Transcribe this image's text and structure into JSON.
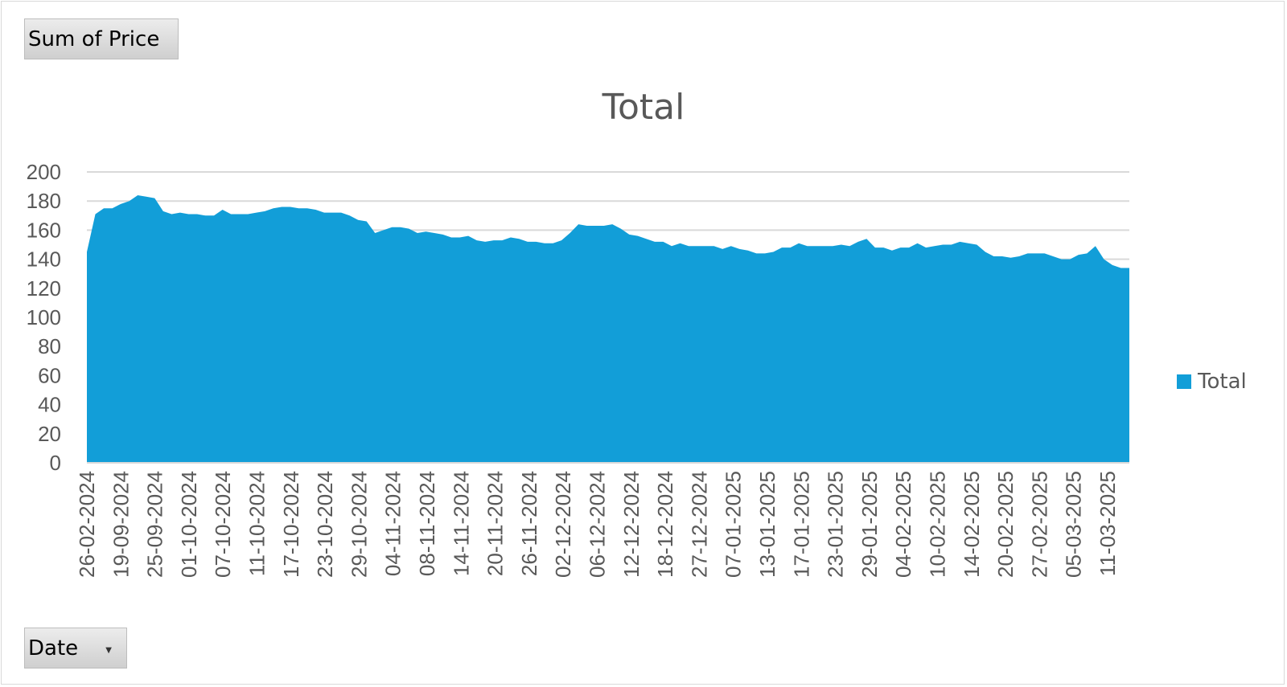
{
  "pivot": {
    "value_field": "Sum of Price",
    "axis_field": "Date",
    "legend_label": "Total"
  },
  "colors": {
    "area": "#129ed8",
    "grid": "#d9d9d9",
    "text": "#595959"
  },
  "icons": {
    "dropdown": "chevron-down-icon"
  },
  "chart_data": {
    "type": "area",
    "title": "Total",
    "xlabel": "",
    "ylabel": "",
    "ylim": [
      0,
      200
    ],
    "yticks": [
      0,
      20,
      40,
      60,
      80,
      100,
      120,
      140,
      160,
      180,
      200
    ],
    "grid": true,
    "legend_position": "right",
    "x_tick_labels": [
      "26-02-2024",
      "19-09-2024",
      "25-09-2024",
      "01-10-2024",
      "07-10-2024",
      "11-10-2024",
      "17-10-2024",
      "23-10-2024",
      "29-10-2024",
      "04-11-2024",
      "08-11-2024",
      "14-11-2024",
      "20-11-2024",
      "26-11-2024",
      "02-12-2024",
      "06-12-2024",
      "12-12-2024",
      "18-12-2024",
      "27-12-2024",
      "07-01-2025",
      "13-01-2025",
      "17-01-2025",
      "23-01-2025",
      "29-01-2025",
      "04-02-2025",
      "10-02-2025",
      "14-02-2025",
      "20-02-2025",
      "27-02-2025",
      "05-03-2025",
      "11-03-2025"
    ],
    "series": [
      {
        "name": "Total",
        "values": [
          145,
          171,
          175,
          175,
          178,
          180,
          184,
          183,
          182,
          173,
          171,
          172,
          171,
          171,
          170,
          170,
          174,
          171,
          171,
          171,
          172,
          173,
          175,
          176,
          176,
          175,
          175,
          174,
          172,
          172,
          172,
          170,
          167,
          166,
          158,
          160,
          162,
          162,
          161,
          158,
          159,
          158,
          157,
          155,
          155,
          156,
          153,
          152,
          153,
          153,
          155,
          154,
          152,
          152,
          151,
          151,
          153,
          158,
          164,
          163,
          163,
          163,
          164,
          161,
          157,
          156,
          154,
          152,
          152,
          149,
          151,
          149,
          149,
          149,
          149,
          147,
          149,
          147,
          146,
          144,
          144,
          145,
          148,
          148,
          151,
          149,
          149,
          149,
          149,
          150,
          149,
          152,
          154,
          148,
          148,
          146,
          148,
          148,
          151,
          148,
          149,
          150,
          150,
          152,
          151,
          150,
          145,
          142,
          142,
          141,
          142,
          144,
          144,
          144,
          142,
          140,
          140,
          143,
          144,
          149,
          140,
          136,
          134,
          134
        ]
      }
    ]
  }
}
